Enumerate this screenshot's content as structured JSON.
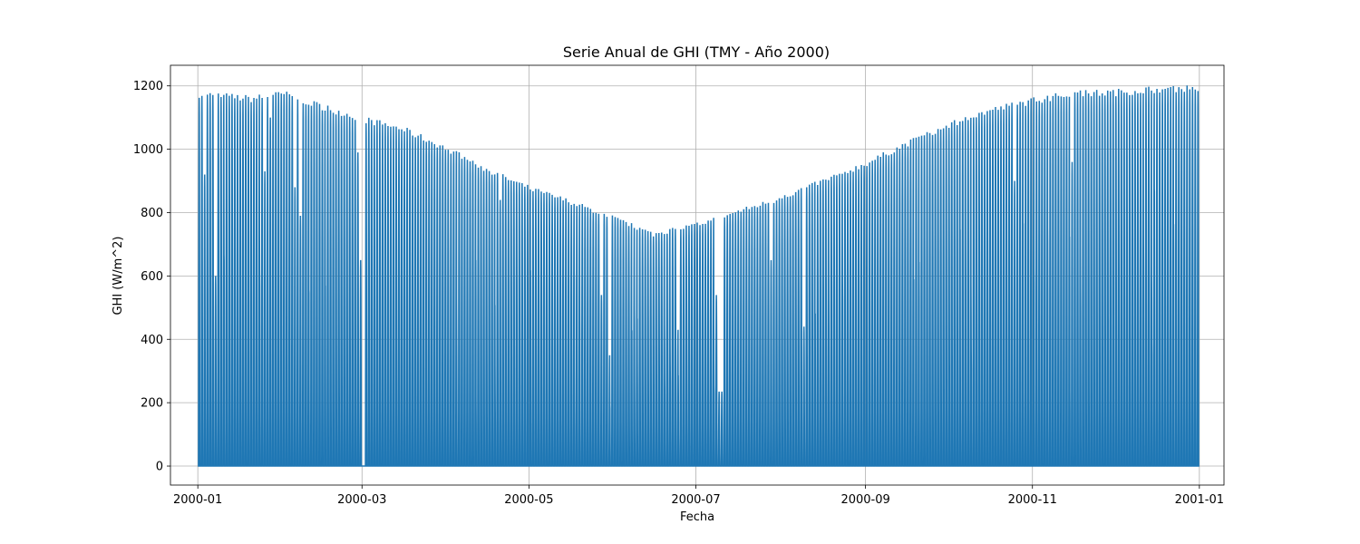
{
  "chart_data": {
    "type": "line",
    "title": "Serie Anual de GHI (TMY - Año 2000)",
    "xlabel": "Fecha",
    "ylabel": "GHI (W/m^2)",
    "x_range": [
      "2000-01-01",
      "2001-01-01"
    ],
    "xlim": [
      "1999-12-22",
      "2001-01-10"
    ],
    "ylim": [
      -60,
      1265
    ],
    "x_ticks": [
      {
        "date": "2000-01-01",
        "label": "2000-01"
      },
      {
        "date": "2000-03-01",
        "label": "2000-03"
      },
      {
        "date": "2000-05-01",
        "label": "2000-05"
      },
      {
        "date": "2000-07-01",
        "label": "2000-07"
      },
      {
        "date": "2000-09-01",
        "label": "2000-09"
      },
      {
        "date": "2000-11-01",
        "label": "2000-11"
      },
      {
        "date": "2001-01-01",
        "label": "2001-01"
      }
    ],
    "y_ticks": [
      0,
      200,
      400,
      600,
      800,
      1000,
      1200
    ],
    "grid": true,
    "color": "#1f77b4",
    "resolution": "hourly",
    "daily_peak_envelope": [
      {
        "date": "2000-01-01",
        "peak_ghi": 1180
      },
      {
        "date": "2000-01-20",
        "peak_ghi": 1165
      },
      {
        "date": "2000-02-01",
        "peak_ghi": 1180
      },
      {
        "date": "2000-02-15",
        "peak_ghi": 1140
      },
      {
        "date": "2000-03-01",
        "peak_ghi": 1100
      },
      {
        "date": "2000-03-15",
        "peak_ghi": 1070
      },
      {
        "date": "2000-04-01",
        "peak_ghi": 1005
      },
      {
        "date": "2000-04-15",
        "peak_ghi": 940
      },
      {
        "date": "2000-05-01",
        "peak_ghi": 880
      },
      {
        "date": "2000-05-15",
        "peak_ghi": 840
      },
      {
        "date": "2000-06-01",
        "peak_ghi": 785
      },
      {
        "date": "2000-06-15",
        "peak_ghi": 735
      },
      {
        "date": "2000-07-01",
        "peak_ghi": 765
      },
      {
        "date": "2000-07-15",
        "peak_ghi": 805
      },
      {
        "date": "2000-08-01",
        "peak_ghi": 850
      },
      {
        "date": "2000-08-15",
        "peak_ghi": 900
      },
      {
        "date": "2000-09-01",
        "peak_ghi": 960
      },
      {
        "date": "2000-09-15",
        "peak_ghi": 1020
      },
      {
        "date": "2000-10-01",
        "peak_ghi": 1080
      },
      {
        "date": "2000-10-15",
        "peak_ghi": 1125
      },
      {
        "date": "2000-11-01",
        "peak_ghi": 1160
      },
      {
        "date": "2000-11-15",
        "peak_ghi": 1180
      },
      {
        "date": "2000-12-01",
        "peak_ghi": 1185
      },
      {
        "date": "2000-12-15",
        "peak_ghi": 1195
      },
      {
        "date": "2001-01-01",
        "peak_ghi": 1200
      }
    ],
    "cloudy_days": [
      {
        "date": "2000-01-03",
        "peak_ghi": 920
      },
      {
        "date": "2000-01-07",
        "peak_ghi": 600
      },
      {
        "date": "2000-01-25",
        "peak_ghi": 930
      },
      {
        "date": "2000-01-27",
        "peak_ghi": 1100
      },
      {
        "date": "2000-02-05",
        "peak_ghi": 880
      },
      {
        "date": "2000-02-07",
        "peak_ghi": 790
      },
      {
        "date": "2000-02-28",
        "peak_ghi": 990
      },
      {
        "date": "2000-02-29",
        "peak_ghi": 650
      },
      {
        "date": "2000-03-01",
        "peak_ghi": 0
      },
      {
        "date": "2000-04-20",
        "peak_ghi": 840
      },
      {
        "date": "2000-05-27",
        "peak_ghi": 540
      },
      {
        "date": "2000-05-30",
        "peak_ghi": 350
      },
      {
        "date": "2000-06-24",
        "peak_ghi": 430
      },
      {
        "date": "2000-07-08",
        "peak_ghi": 540
      },
      {
        "date": "2000-07-09",
        "peak_ghi": 235
      },
      {
        "date": "2000-07-10",
        "peak_ghi": 235
      },
      {
        "date": "2000-07-28",
        "peak_ghi": 650
      },
      {
        "date": "2000-08-09",
        "peak_ghi": 440
      },
      {
        "date": "2000-10-25",
        "peak_ghi": 900
      },
      {
        "date": "2000-11-15",
        "peak_ghi": 960
      }
    ]
  }
}
